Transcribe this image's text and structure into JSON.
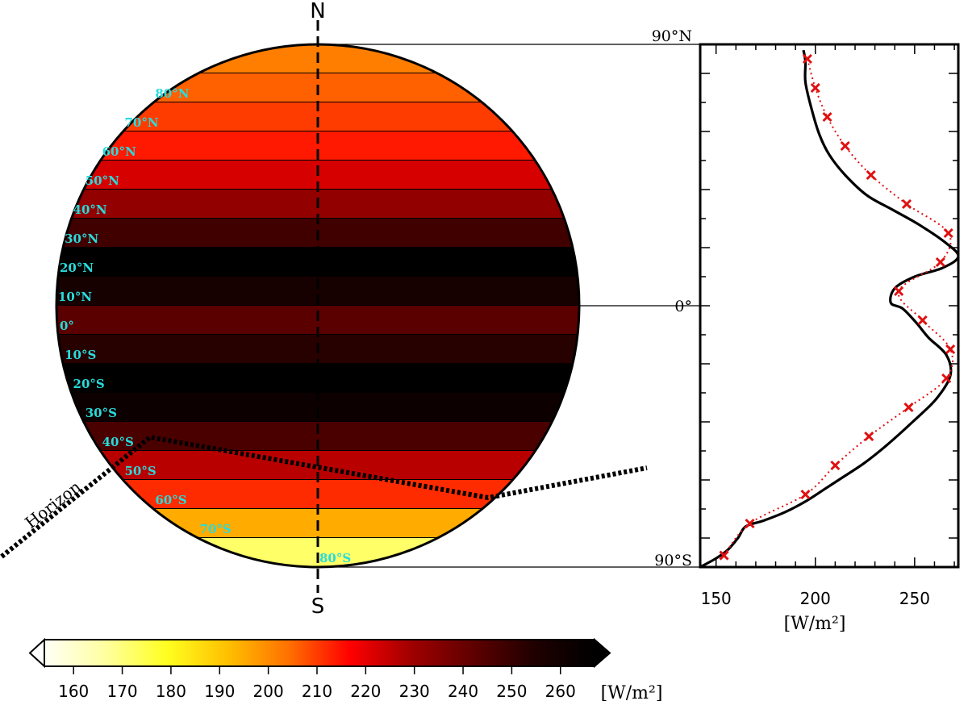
{
  "chart_data": [
    {
      "type": "heatmap",
      "pole_labels": {
        "north": "N",
        "south": "S"
      },
      "horizon_label": "Horizon",
      "bands": [
        {
          "label": "",
          "lat_min": 80,
          "lat_max": 90,
          "value": 202
        },
        {
          "label": "80°N",
          "lat_min": 70,
          "lat_max": 80,
          "value": 206
        },
        {
          "label": "70°N",
          "lat_min": 60,
          "lat_max": 70,
          "value": 210
        },
        {
          "label": "60°N",
          "lat_min": 50,
          "lat_max": 60,
          "value": 214
        },
        {
          "label": "50°N",
          "lat_min": 40,
          "lat_max": 50,
          "value": 222
        },
        {
          "label": "40°N",
          "lat_min": 30,
          "lat_max": 40,
          "value": 232
        },
        {
          "label": "30°N",
          "lat_min": 20,
          "lat_max": 30,
          "value": 248
        },
        {
          "label": "20°N",
          "lat_min": 10,
          "lat_max": 20,
          "value": 268
        },
        {
          "label": "10°N",
          "lat_min": 0,
          "lat_max": 10,
          "value": 258
        },
        {
          "label": "0°",
          "lat_min": -10,
          "lat_max": 0,
          "value": 243
        },
        {
          "label": "10°S",
          "lat_min": -20,
          "lat_max": -10,
          "value": 253
        },
        {
          "label": "20°S",
          "lat_min": -30,
          "lat_max": -20,
          "value": 268
        },
        {
          "label": "30°S",
          "lat_min": -40,
          "lat_max": -30,
          "value": 262
        },
        {
          "label": "40°S",
          "lat_min": -50,
          "lat_max": -40,
          "value": 246
        },
        {
          "label": "50°S",
          "lat_min": -60,
          "lat_max": -50,
          "value": 226
        },
        {
          "label": "60°S",
          "lat_min": -70,
          "lat_max": -60,
          "value": 212
        },
        {
          "label": "70°S",
          "lat_min": -80,
          "lat_max": -70,
          "value": 195
        },
        {
          "label": "80°S",
          "lat_min": -90,
          "lat_max": -80,
          "value": 172
        }
      ]
    },
    {
      "type": "line",
      "xlabel": "[W/m²]",
      "xlim": [
        142,
        272
      ],
      "ylim": [
        -90,
        90
      ],
      "x_ticks": [
        "150",
        "200",
        "250"
      ],
      "x_tick_values": [
        150,
        200,
        250
      ],
      "y_tick_labels": [
        {
          "label": "90°N",
          "lat": 90
        },
        {
          "label": "0°",
          "lat": 0
        },
        {
          "label": "90°S",
          "lat": -90
        }
      ],
      "series": [
        {
          "style": "solid",
          "color": "#000000",
          "points": [
            [
              142,
              -90
            ],
            [
              150,
              -87
            ],
            [
              156,
              -84
            ],
            [
              161,
              -80
            ],
            [
              165,
              -76
            ],
            [
              174,
              -74
            ],
            [
              185,
              -71
            ],
            [
              196,
              -67
            ],
            [
              205,
              -63
            ],
            [
              214,
              -59
            ],
            [
              225,
              -54
            ],
            [
              236,
              -48
            ],
            [
              249,
              -40
            ],
            [
              261,
              -32
            ],
            [
              268,
              -24
            ],
            [
              266,
              -17
            ],
            [
              257,
              -11
            ],
            [
              251,
              -6
            ],
            [
              244,
              -1
            ],
            [
              238,
              1
            ],
            [
              240,
              6
            ],
            [
              250,
              10
            ],
            [
              264,
              13
            ],
            [
              272,
              17
            ],
            [
              265,
              22
            ],
            [
              252,
              28
            ],
            [
              239,
              33
            ],
            [
              226,
              38
            ],
            [
              215,
              45
            ],
            [
              207,
              52
            ],
            [
              202,
              59
            ],
            [
              198,
              68
            ],
            [
              195,
              77
            ],
            [
              195,
              84
            ],
            [
              194,
              88
            ]
          ]
        },
        {
          "style": "dotted",
          "color": "#e01010",
          "points": [
            [
              154,
              -86
            ],
            [
              167,
              -75
            ],
            [
              195,
              -65
            ],
            [
              210,
              -55
            ],
            [
              227,
              -45
            ],
            [
              247,
              -35
            ],
            [
              266,
              -25
            ],
            [
              268,
              -15
            ],
            [
              254,
              -5
            ],
            [
              242,
              5
            ],
            [
              263,
              15
            ],
            [
              267,
              25
            ],
            [
              246,
              35
            ],
            [
              228,
              45
            ],
            [
              215,
              55
            ],
            [
              206,
              65
            ],
            [
              200,
              75
            ],
            [
              196,
              85
            ]
          ],
          "markers": "x"
        }
      ]
    },
    {
      "type": "colorbar",
      "tick_labels": [
        "160",
        "170",
        "180",
        "190",
        "200",
        "210",
        "220",
        "230",
        "240",
        "250",
        "260"
      ],
      "tick_values": [
        160,
        170,
        180,
        190,
        200,
        210,
        220,
        230,
        240,
        250,
        260
      ],
      "range": [
        154,
        267
      ],
      "unit": "[W/m²]",
      "colors": {
        "stops": [
          "#fffff8",
          "#ffffa0",
          "#ffff20",
          "#ffc000",
          "#ff7000",
          "#ff0000",
          "#a00000",
          "#600000",
          "#200000",
          "#000000"
        ]
      }
    }
  ]
}
